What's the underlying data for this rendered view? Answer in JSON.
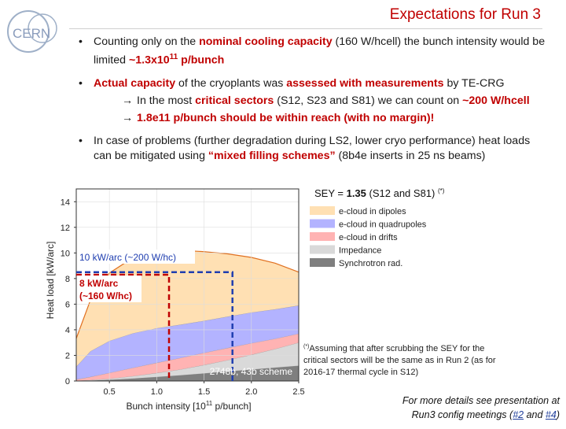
{
  "slide": {
    "title": "Expectations for Run 3",
    "logo_text": "CERN"
  },
  "bullets": [
    {
      "parts": [
        {
          "t": "Counting only on the "
        },
        {
          "t": "nominal cooling capacity",
          "red": true
        },
        {
          "t": " (160 W/hcell) the bunch intensity would be limited "
        },
        {
          "t": "~1.3x10",
          "red": true
        },
        {
          "t": "11",
          "red": true,
          "sup": true
        },
        {
          "t": " p/bunch",
          "red": true
        }
      ]
    },
    {
      "parts": [
        {
          "t": "Actual capacity",
          "red": true
        },
        {
          "t": " of the cryoplants was "
        },
        {
          "t": "assessed with measurements",
          "red": true
        },
        {
          "t": " by TE-CRG"
        }
      ],
      "subs": [
        {
          "parts": [
            {
              "t": "In the most "
            },
            {
              "t": "critical sectors",
              "red": true
            },
            {
              "t": " (S12, S23 and S81) we can count on "
            },
            {
              "t": "~200 W/hcell",
              "red": true
            }
          ]
        },
        {
          "parts": [
            {
              "t": "1.8e11 p/bunch should be within reach (with no margin)!",
              "red": true
            }
          ]
        }
      ]
    },
    {
      "parts": [
        {
          "t": "In case of problems (further degradation during LS2, lower cryo performance) heat loads can be mitigated using "
        },
        {
          "t": "“mixed filling schemes”",
          "red": true
        },
        {
          "t": " (8b4e inserts in 25 ns beams)"
        }
      ]
    }
  ],
  "chart_data": {
    "type": "area",
    "stacked": true,
    "title_prefix": "SEY = ",
    "title_value": "1.35",
    "title_suffix": " (S12 and S81) ",
    "title_mark": "(*)",
    "xlabel": "Bunch intensity [10",
    "xlabel_sup": "11",
    "xlabel_suffix": " p/bunch]",
    "ylabel": "Heat load [kW/arc]",
    "xlim": [
      0.15,
      2.5
    ],
    "ylim": [
      0,
      15
    ],
    "xticks": [
      0.5,
      1.0,
      1.5,
      2.0,
      2.5
    ],
    "xtick_labels": [
      "0.5",
      "1.0",
      "1.5",
      "2.0",
      "2.5"
    ],
    "yticks": [
      0,
      2,
      4,
      6,
      8,
      10,
      12,
      14
    ],
    "x": [
      0.15,
      0.3,
      0.5,
      0.75,
      1.0,
      1.25,
      1.5,
      1.75,
      2.0,
      2.25,
      2.5
    ],
    "series": [
      {
        "name": "Synchrotron rad.",
        "color": "#7f7f7f",
        "values": [
          0.01,
          0.04,
          0.1,
          0.2,
          0.32,
          0.45,
          0.6,
          0.75,
          0.9,
          1.05,
          1.2
        ]
      },
      {
        "name": "Impedance",
        "color": "#d9d9d9",
        "values": [
          0.01,
          0.03,
          0.08,
          0.18,
          0.3,
          0.45,
          0.65,
          0.88,
          1.15,
          1.45,
          1.8
        ]
      },
      {
        "name": "e-cloud in drifts",
        "color": "#ffb3b3",
        "values": [
          0.1,
          0.25,
          0.45,
          0.65,
          0.8,
          0.9,
          0.95,
          0.95,
          0.9,
          0.8,
          0.7
        ]
      },
      {
        "name": "e-cloud in quadrupoles",
        "color": "#b3b3ff",
        "values": [
          1.0,
          2.0,
          2.5,
          2.7,
          2.7,
          2.6,
          2.5,
          2.45,
          2.4,
          2.3,
          2.2
        ]
      },
      {
        "name": "e-cloud in dipoles",
        "color": "#ffe0b3",
        "values": [
          2.2,
          4.0,
          5.3,
          5.9,
          6.0,
          5.8,
          5.4,
          4.9,
          4.3,
          3.6,
          2.6
        ]
      }
    ],
    "reference_lines": [
      {
        "label": "10 kW/arc (~200 W/hc)",
        "y": 8.5,
        "x": 1.8
      },
      {
        "label1": "8 kW/arc",
        "label2": "(~160 W/hc)",
        "y": 8.3,
        "x": 1.13
      }
    ],
    "annotation_scheme": "2748b, 43b scheme",
    "footnote_mark": "(*)",
    "footnote_lines": [
      "Assuming that after scrubbing the SEY for the",
      "critical sectors will be the same as in Run 2 (as for",
      "2016-17 thermal cycle in S12)"
    ]
  },
  "footer": {
    "line1": "For more details see presentation at",
    "line2_prefix": "Run3 config meetings (",
    "link1": "#2",
    "and": " and ",
    "link2": "#4",
    "line2_suffix": ")"
  }
}
